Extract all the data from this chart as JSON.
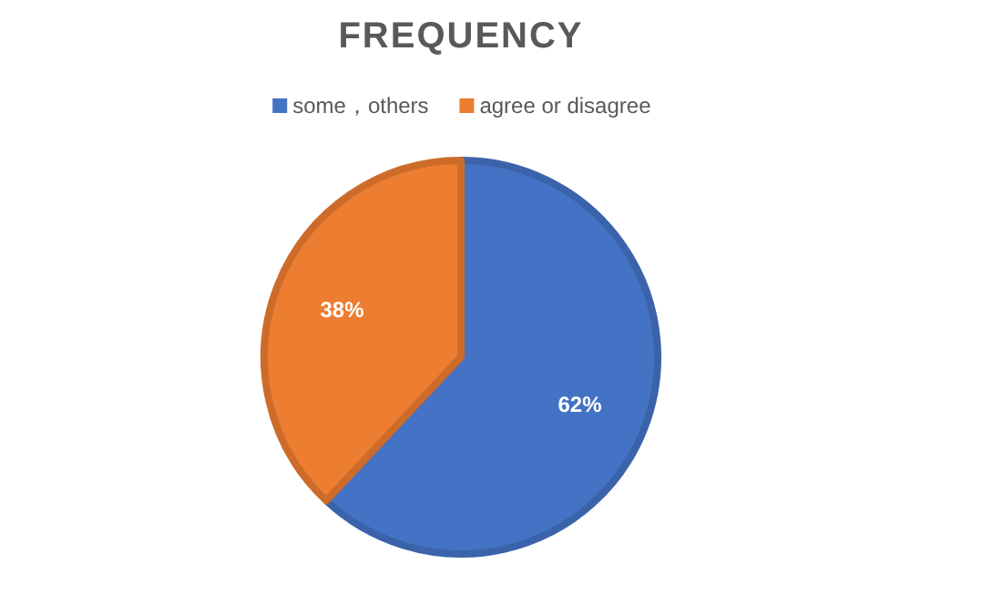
{
  "chart_data": {
    "type": "pie",
    "title": "FREQUENCY",
    "categories": [
      "some，others",
      "agree or disagree"
    ],
    "values": [
      62,
      38
    ],
    "colors": [
      "#4472c4",
      "#ed7d31"
    ],
    "value_labels": [
      "62%",
      "38%"
    ],
    "legend": "top"
  }
}
